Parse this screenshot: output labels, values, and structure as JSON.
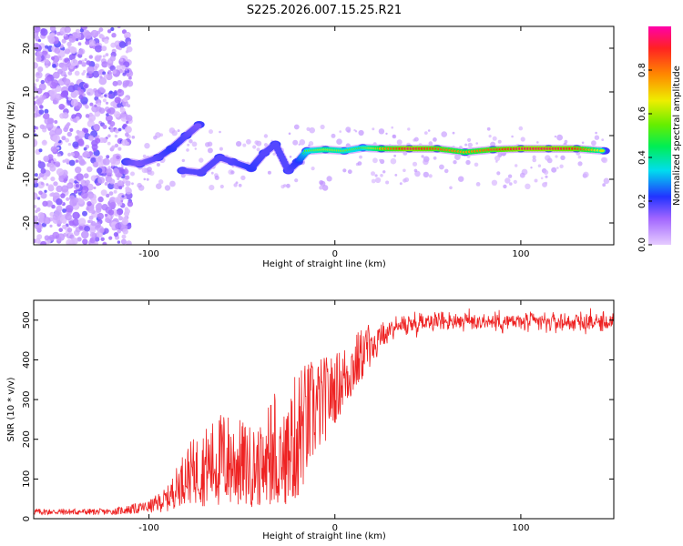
{
  "title": "S225.2026.007.15.25.R21",
  "colors": {
    "snr_line": "#ee2222",
    "frame": "#000000"
  },
  "chart_data": [
    {
      "type": "heatmap",
      "title": "S225.2026.007.15.25.R21",
      "xlabel": "Height of straight line (km)",
      "ylabel": "Frequency (Hz)",
      "xlim": [
        -162,
        150
      ],
      "ylim": [
        -25,
        25
      ],
      "x_ticks": [
        -100,
        0,
        100
      ],
      "x_tick_labels": [
        "-100",
        "0",
        "100"
      ],
      "y_ticks": [
        -20,
        -10,
        0,
        10,
        20
      ],
      "y_tick_labels": [
        "-20",
        "-10",
        "0",
        "10",
        "20"
      ],
      "colorbar": {
        "label": "Normalized spectral amplitude",
        "range": [
          0,
          1
        ],
        "ticks": [
          0.0,
          0.2,
          0.4,
          0.6,
          0.8
        ],
        "tick_labels": [
          "0.0",
          "0.2",
          "0.4",
          "0.6",
          "0.8"
        ]
      },
      "ridge": [
        {
          "x": -112,
          "f": -6.0,
          "a": 0.3
        },
        {
          "x": -105,
          "f": -6.5,
          "a": 0.25
        },
        {
          "x": -95,
          "f": -5.0,
          "a": 0.3
        },
        {
          "x": -88,
          "f": -3.0,
          "a": 0.35
        },
        {
          "x": -80,
          "f": 0.0,
          "a": 0.3
        },
        {
          "x": -73,
          "f": 2.5,
          "a": 0.25
        },
        {
          "x": -82,
          "f": -8.0,
          "a": 0.3
        },
        {
          "x": -72,
          "f": -8.5,
          "a": 0.3
        },
        {
          "x": -62,
          "f": -5.0,
          "a": 0.3
        },
        {
          "x": -55,
          "f": -6.0,
          "a": 0.3
        },
        {
          "x": -45,
          "f": -7.5,
          "a": 0.35
        },
        {
          "x": -38,
          "f": -4.0,
          "a": 0.3
        },
        {
          "x": -32,
          "f": -2.0,
          "a": 0.3
        },
        {
          "x": -25,
          "f": -8.0,
          "a": 0.3
        },
        {
          "x": -20,
          "f": -6.0,
          "a": 0.35
        },
        {
          "x": -15,
          "f": -3.5,
          "a": 0.55
        },
        {
          "x": -5,
          "f": -3.2,
          "a": 0.65
        },
        {
          "x": 5,
          "f": -3.5,
          "a": 0.6
        },
        {
          "x": 15,
          "f": -2.8,
          "a": 0.55
        },
        {
          "x": 25,
          "f": -3.0,
          "a": 0.75
        },
        {
          "x": 40,
          "f": -3.0,
          "a": 0.95
        },
        {
          "x": 55,
          "f": -3.0,
          "a": 0.85
        },
        {
          "x": 70,
          "f": -3.8,
          "a": 0.75
        },
        {
          "x": 85,
          "f": -3.2,
          "a": 0.85
        },
        {
          "x": 100,
          "f": -3.0,
          "a": 0.95
        },
        {
          "x": 115,
          "f": -3.0,
          "a": 0.95
        },
        {
          "x": 130,
          "f": -3.0,
          "a": 0.9
        },
        {
          "x": 145,
          "f": -3.5,
          "a": 0.6
        }
      ]
    },
    {
      "type": "line",
      "xlabel": "Height of straight line (km)",
      "ylabel": "SNR (10 * v/v)",
      "xlim": [
        -162,
        150
      ],
      "ylim": [
        0,
        550
      ],
      "x_ticks": [
        -100,
        0,
        100
      ],
      "x_tick_labels": [
        "-100",
        "0",
        "100"
      ],
      "y_ticks": [
        0,
        100,
        200,
        300,
        400,
        500
      ],
      "y_tick_labels": [
        "0",
        "100",
        "200",
        "300",
        "400",
        "500"
      ],
      "envelope": [
        {
          "x": -162,
          "mean": 15,
          "spread": 10
        },
        {
          "x": -120,
          "mean": 15,
          "spread": 10
        },
        {
          "x": -100,
          "mean": 25,
          "spread": 20
        },
        {
          "x": -90,
          "mean": 40,
          "spread": 40
        },
        {
          "x": -80,
          "mean": 90,
          "spread": 90
        },
        {
          "x": -60,
          "mean": 110,
          "spread": 160
        },
        {
          "x": -45,
          "mean": 100,
          "spread": 130
        },
        {
          "x": -30,
          "mean": 100,
          "spread": 120
        },
        {
          "x": -20,
          "mean": 160,
          "spread": 220
        },
        {
          "x": -10,
          "mean": 240,
          "spread": 160
        },
        {
          "x": 0,
          "mean": 300,
          "spread": 110
        },
        {
          "x": 10,
          "mean": 360,
          "spread": 100
        },
        {
          "x": 20,
          "mean": 430,
          "spread": 70
        },
        {
          "x": 30,
          "mean": 480,
          "spread": 50
        },
        {
          "x": 50,
          "mean": 500,
          "spread": 45
        },
        {
          "x": 100,
          "mean": 495,
          "spread": 45
        },
        {
          "x": 150,
          "mean": 495,
          "spread": 45
        }
      ]
    }
  ]
}
